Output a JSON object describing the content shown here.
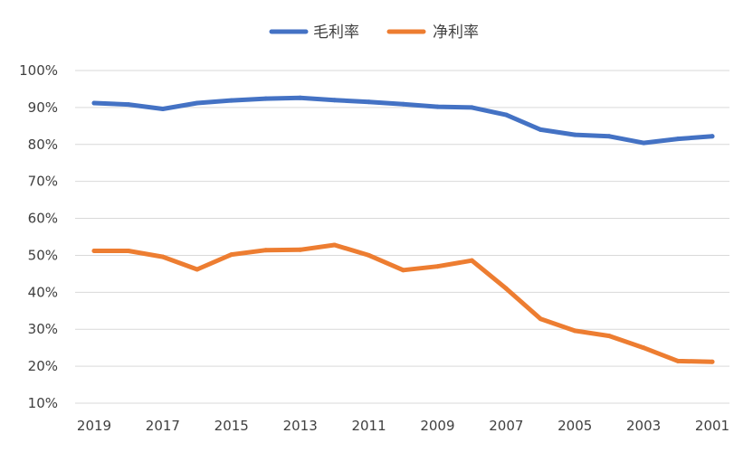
{
  "chart_data": {
    "type": "line",
    "title": "",
    "xlabel": "",
    "ylabel": "",
    "x": [
      "2019",
      "2018",
      "2017",
      "2016",
      "2015",
      "2014",
      "2013",
      "2012",
      "2011",
      "2010",
      "2009",
      "2008",
      "2007",
      "2006",
      "2005",
      "2004",
      "2003",
      "2002",
      "2001"
    ],
    "x_tick_labels": [
      "2019",
      "2017",
      "2015",
      "2013",
      "2011",
      "2009",
      "2007",
      "2005",
      "2003",
      "2001"
    ],
    "ylim": [
      10,
      100
    ],
    "y_ticks": [
      10,
      20,
      30,
      40,
      50,
      60,
      70,
      80,
      90,
      100
    ],
    "y_tick_labels": [
      "10%",
      "20%",
      "30%",
      "40%",
      "50%",
      "60%",
      "70%",
      "80%",
      "90%",
      "100%"
    ],
    "y_unit": "%",
    "grid": "horizontal",
    "legend_position": "top",
    "series": [
      {
        "name": "毛利率",
        "color": "#4472C4",
        "values": [
          91.2,
          90.8,
          89.6,
          91.2,
          91.9,
          92.4,
          92.6,
          92.0,
          91.5,
          90.9,
          90.2,
          90.0,
          88.0,
          84.0,
          82.6,
          82.2,
          80.4,
          81.5,
          82.2
        ]
      },
      {
        "name": "净利率",
        "color": "#ED7D31",
        "values": [
          51.2,
          51.2,
          49.6,
          46.2,
          50.2,
          51.4,
          51.5,
          52.8,
          50.0,
          46.0,
          47.0,
          48.6,
          41.0,
          32.8,
          29.6,
          28.2,
          25.0,
          21.4,
          21.2
        ]
      }
    ]
  }
}
